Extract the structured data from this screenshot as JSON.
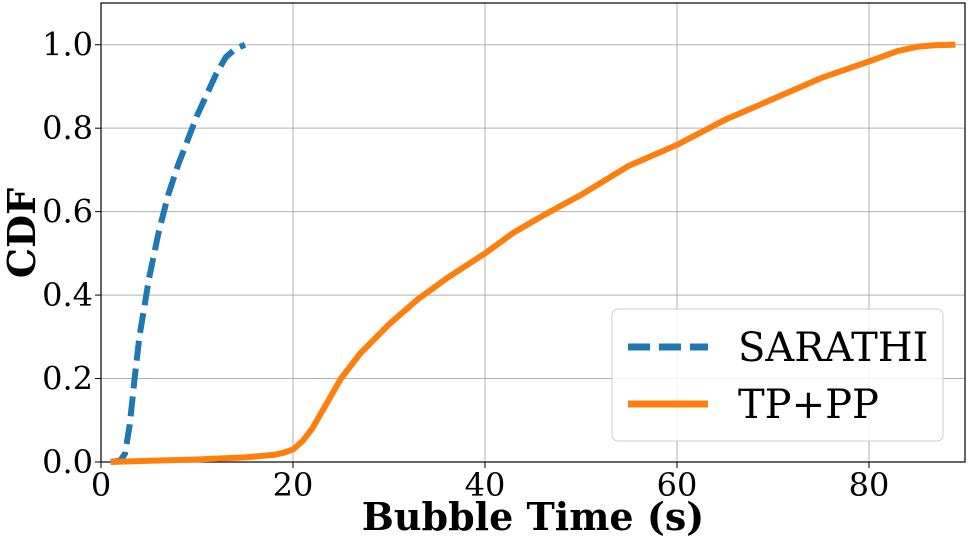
{
  "chart_data": {
    "type": "line",
    "title": "",
    "xlabel": "Bubble Time (s)",
    "ylabel": "CDF",
    "xlim": [
      0,
      90
    ],
    "ylim": [
      0,
      1.1
    ],
    "xticks": [
      0,
      20,
      40,
      60,
      80
    ],
    "xtick_labels": [
      "0",
      "20",
      "40",
      "60",
      "80"
    ],
    "yticks": [
      0.0,
      0.2,
      0.4,
      0.6,
      0.8,
      1.0
    ],
    "ytick_labels": [
      "0.0",
      "0.2",
      "0.4",
      "0.6",
      "0.8",
      "1.0"
    ],
    "grid": true,
    "legend_position": "lower-right",
    "series": [
      {
        "name": "SARATHI",
        "color": "#1f77b4",
        "style": "dashed",
        "x": [
          1.0,
          2.0,
          2.5,
          3.0,
          3.5,
          4.0,
          5.0,
          6.0,
          7.0,
          8.0,
          9.0,
          10.0,
          11.0,
          12.0,
          13.0,
          14.0,
          15.0
        ],
        "y": [
          0.0,
          0.003,
          0.02,
          0.09,
          0.2,
          0.3,
          0.44,
          0.55,
          0.64,
          0.71,
          0.77,
          0.83,
          0.88,
          0.93,
          0.97,
          0.99,
          1.0
        ]
      },
      {
        "name": "TP+PP",
        "color": "#ff7f0e",
        "style": "solid",
        "x": [
          1,
          5,
          10,
          15,
          18,
          19,
          20,
          21,
          22,
          23,
          24,
          25,
          27,
          30,
          33,
          36,
          40,
          43,
          46,
          50,
          55,
          60,
          65,
          70,
          75,
          80,
          83,
          85,
          87,
          89
        ],
        "y": [
          0.0,
          0.003,
          0.006,
          0.011,
          0.017,
          0.022,
          0.03,
          0.05,
          0.08,
          0.12,
          0.16,
          0.2,
          0.26,
          0.33,
          0.39,
          0.44,
          0.5,
          0.55,
          0.59,
          0.64,
          0.71,
          0.76,
          0.82,
          0.87,
          0.92,
          0.96,
          0.985,
          0.995,
          0.999,
          1.0
        ]
      }
    ]
  }
}
